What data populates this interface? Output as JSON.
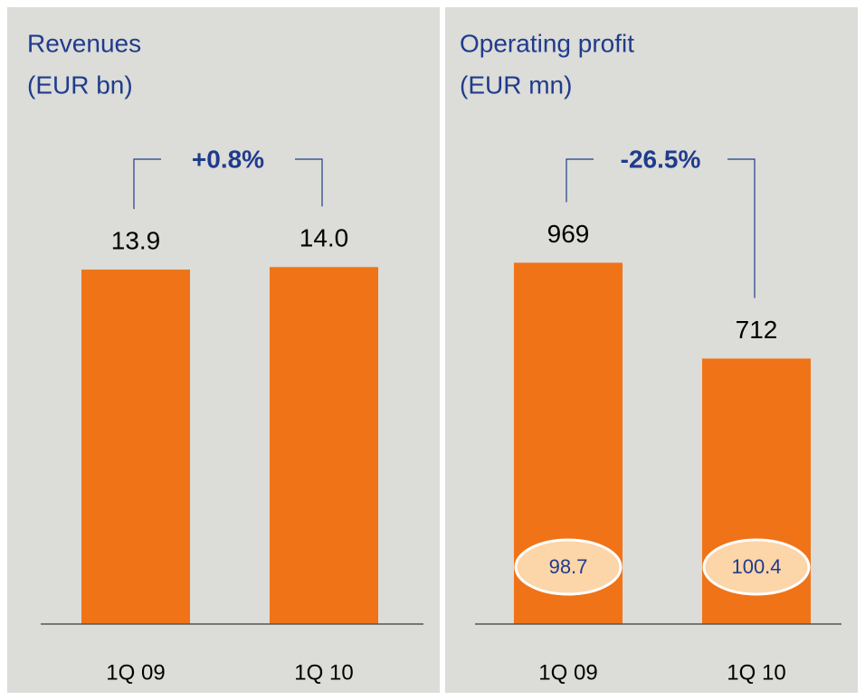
{
  "chart_data": [
    {
      "type": "bar",
      "title": "Revenues",
      "subtitle": "(EUR bn)",
      "annotation": "+0.8%",
      "categories": [
        "1Q 09",
        "1Q 10"
      ],
      "values": [
        13.9,
        14.0
      ],
      "value_labels": [
        "13.9",
        "14.0"
      ],
      "color": "#f07318",
      "ylim": [
        0,
        15.5
      ]
    },
    {
      "type": "bar",
      "title": "Operating profit",
      "subtitle": "(EUR mn)",
      "annotation": "-26.5%",
      "categories": [
        "1Q 09",
        "1Q 10"
      ],
      "values": [
        969,
        712
      ],
      "badges": [
        98.7,
        100.4
      ],
      "color": "#f07318",
      "ylim": [
        0,
        1060
      ]
    }
  ]
}
